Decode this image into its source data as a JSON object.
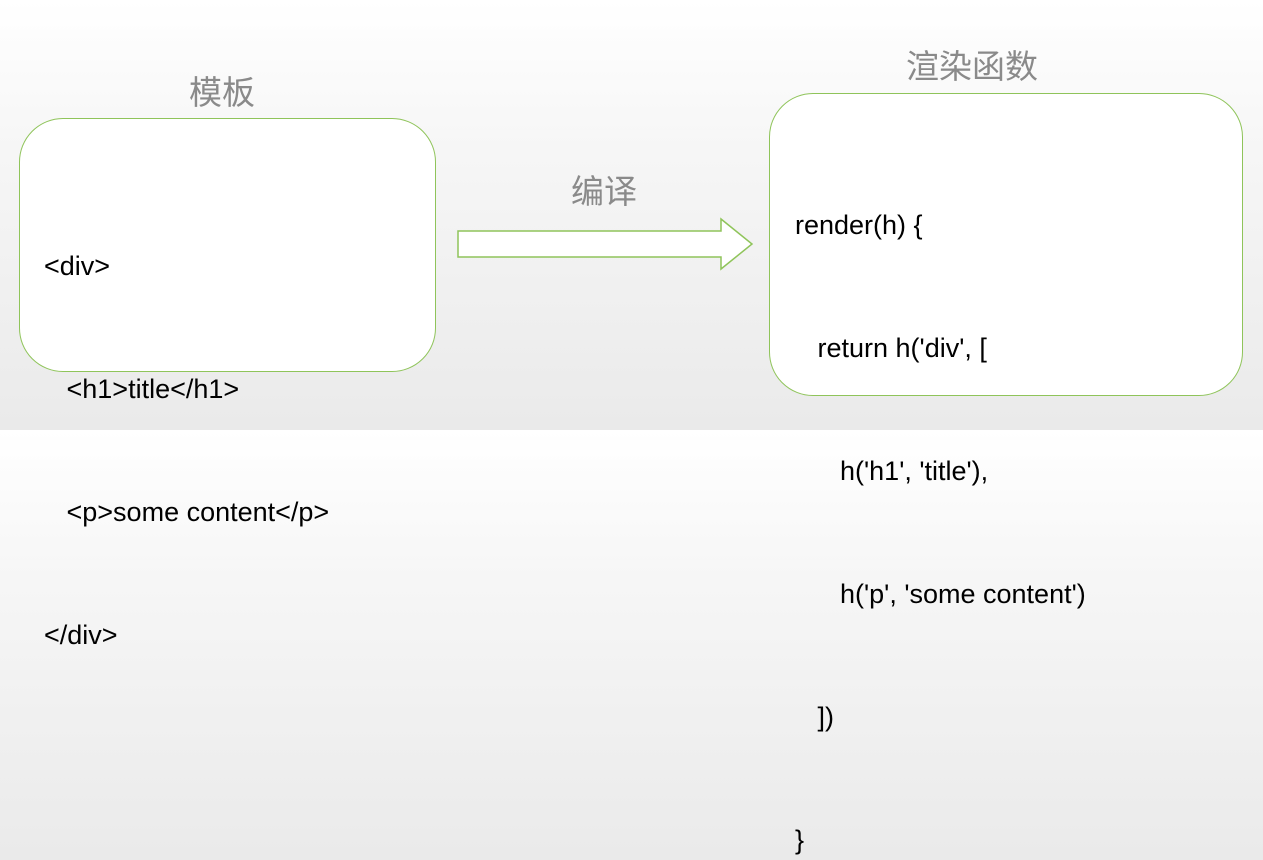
{
  "template": {
    "title": "模板",
    "lines": [
      "<div>",
      "   <h1>title</h1>",
      "   <p>some content</p>",
      "</div>"
    ]
  },
  "arrow": {
    "label": "编译"
  },
  "render_function": {
    "title": "渲染函数",
    "lines": [
      "render(h) {",
      "   return h('div', [",
      "      h('h1', 'title'),",
      "      h('p', 'some content')",
      "   ])",
      "}"
    ]
  },
  "colors": {
    "box_border": "#8fc45a",
    "label_text": "#8a8a8a",
    "arrow_stroke": "#8fc45a"
  }
}
